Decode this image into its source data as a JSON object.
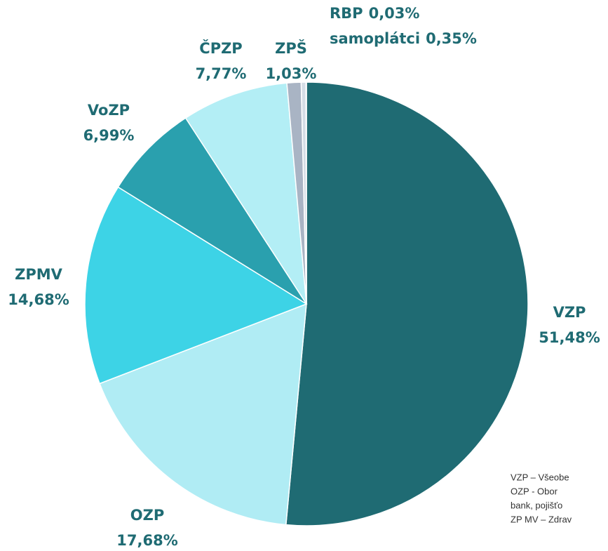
{
  "chart_data": {
    "type": "pie",
    "categories": [
      "VZP",
      "OZP",
      "ZPMV",
      "VoZP",
      "ČPZP",
      "ZPŠ",
      "samoplátci",
      "RBP"
    ],
    "values": [
      51.48,
      17.68,
      14.68,
      6.99,
      7.77,
      1.03,
      0.35,
      0.03
    ],
    "value_labels": [
      "51,48%",
      "17,68%",
      "14,68%",
      "6,99%",
      "7,77%",
      "1,03%",
      "0,35%",
      "0,03%"
    ],
    "colors": [
      "#1f6b73",
      "#b0ecf4",
      "#3dd3e6",
      "#2aa0ae",
      "#b3eef5",
      "#a9b4c4",
      "#d5dde6",
      "#e8eef2"
    ],
    "notes": [
      "VZP – Všeobe",
      "OZP - Obor",
      "bank, pojišťo",
      "ZP MV – Zdrav"
    ]
  }
}
